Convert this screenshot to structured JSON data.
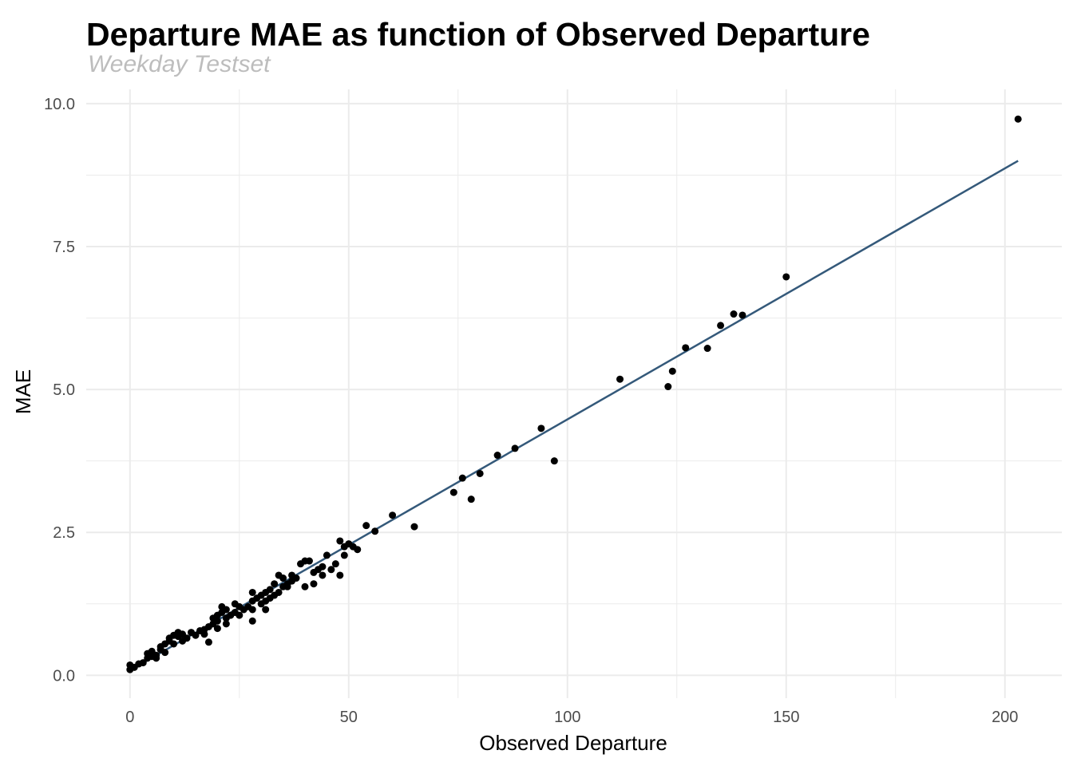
{
  "chart_data": {
    "type": "scatter",
    "title": "Departure MAE as function of Observed Departure",
    "subtitle": "Weekday Testset",
    "xlabel": "Observed Departure",
    "ylabel": "MAE",
    "xlim": [
      -10,
      213
    ],
    "ylim": [
      -0.4,
      10.25
    ],
    "x_ticks": [
      0,
      50,
      100,
      150,
      200
    ],
    "x_tick_labels": [
      "0",
      "50",
      "100",
      "150",
      "200"
    ],
    "y_ticks": [
      0,
      2.5,
      5,
      7.5,
      10
    ],
    "y_tick_labels": [
      "0.0",
      "2.5",
      "5.0",
      "7.5",
      "10.0"
    ],
    "grid": true,
    "colors": {
      "points": "#000000",
      "fit_line": "#34597a",
      "grid": "#ebebeb"
    },
    "fit_line": {
      "x": [
        1,
        203
      ],
      "y": [
        0.13,
        9.0
      ]
    },
    "points": [
      [
        0,
        0.1
      ],
      [
        0,
        0.18
      ],
      [
        1,
        0.14
      ],
      [
        2,
        0.2
      ],
      [
        3,
        0.22
      ],
      [
        4,
        0.3
      ],
      [
        4,
        0.38
      ],
      [
        5,
        0.33
      ],
      [
        5,
        0.42
      ],
      [
        6,
        0.35
      ],
      [
        6,
        0.3
      ],
      [
        7,
        0.45
      ],
      [
        7,
        0.5
      ],
      [
        8,
        0.55
      ],
      [
        8,
        0.4
      ],
      [
        9,
        0.6
      ],
      [
        9,
        0.65
      ],
      [
        10,
        0.7
      ],
      [
        10,
        0.55
      ],
      [
        11,
        0.68
      ],
      [
        11,
        0.75
      ],
      [
        12,
        0.6
      ],
      [
        12,
        0.72
      ],
      [
        13,
        0.65
      ],
      [
        14,
        0.75
      ],
      [
        15,
        0.7
      ],
      [
        16,
        0.78
      ],
      [
        17,
        0.8
      ],
      [
        17,
        0.72
      ],
      [
        18,
        0.85
      ],
      [
        18,
        0.58
      ],
      [
        19,
        0.9
      ],
      [
        19,
        1.0
      ],
      [
        20,
        0.95
      ],
      [
        20,
        1.05
      ],
      [
        20,
        0.82
      ],
      [
        21,
        1.1
      ],
      [
        21,
        1.2
      ],
      [
        22,
        1.0
      ],
      [
        22,
        1.15
      ],
      [
        22,
        0.9
      ],
      [
        23,
        1.05
      ],
      [
        24,
        1.25
      ],
      [
        24,
        1.1
      ],
      [
        25,
        1.2
      ],
      [
        25,
        1.05
      ],
      [
        26,
        1.15
      ],
      [
        27,
        1.2
      ],
      [
        28,
        1.3
      ],
      [
        28,
        1.45
      ],
      [
        28,
        0.95
      ],
      [
        28,
        1.15
      ],
      [
        29,
        1.35
      ],
      [
        30,
        1.4
      ],
      [
        30,
        1.25
      ],
      [
        31,
        1.3
      ],
      [
        31,
        1.45
      ],
      [
        31,
        1.15
      ],
      [
        32,
        1.5
      ],
      [
        32,
        1.35
      ],
      [
        33,
        1.6
      ],
      [
        33,
        1.4
      ],
      [
        34,
        1.75
      ],
      [
        34,
        1.45
      ],
      [
        35,
        1.7
      ],
      [
        35,
        1.55
      ],
      [
        36,
        1.55
      ],
      [
        36,
        1.6
      ],
      [
        37,
        1.75
      ],
      [
        37,
        1.65
      ],
      [
        38,
        1.7
      ],
      [
        39,
        1.95
      ],
      [
        40,
        2.0
      ],
      [
        40,
        1.55
      ],
      [
        41,
        2.0
      ],
      [
        42,
        1.6
      ],
      [
        42,
        1.8
      ],
      [
        43,
        1.85
      ],
      [
        44,
        1.75
      ],
      [
        44,
        1.9
      ],
      [
        45,
        2.1
      ],
      [
        46,
        1.85
      ],
      [
        47,
        1.95
      ],
      [
        48,
        2.35
      ],
      [
        48,
        1.75
      ],
      [
        49,
        2.1
      ],
      [
        49,
        2.25
      ],
      [
        50,
        2.3
      ],
      [
        51,
        2.25
      ],
      [
        52,
        2.2
      ],
      [
        54,
        2.62
      ],
      [
        56,
        2.52
      ],
      [
        60,
        2.8
      ],
      [
        65,
        2.6
      ],
      [
        74,
        3.2
      ],
      [
        76,
        3.45
      ],
      [
        78,
        3.08
      ],
      [
        80,
        3.53
      ],
      [
        84,
        3.85
      ],
      [
        88,
        3.97
      ],
      [
        94,
        4.32
      ],
      [
        97,
        3.75
      ],
      [
        112,
        5.18
      ],
      [
        123,
        5.05
      ],
      [
        124,
        5.32
      ],
      [
        127,
        5.73
      ],
      [
        132,
        5.72
      ],
      [
        135,
        6.12
      ],
      [
        138,
        6.32
      ],
      [
        140,
        6.3
      ],
      [
        150,
        6.97
      ],
      [
        203,
        9.73
      ]
    ]
  }
}
